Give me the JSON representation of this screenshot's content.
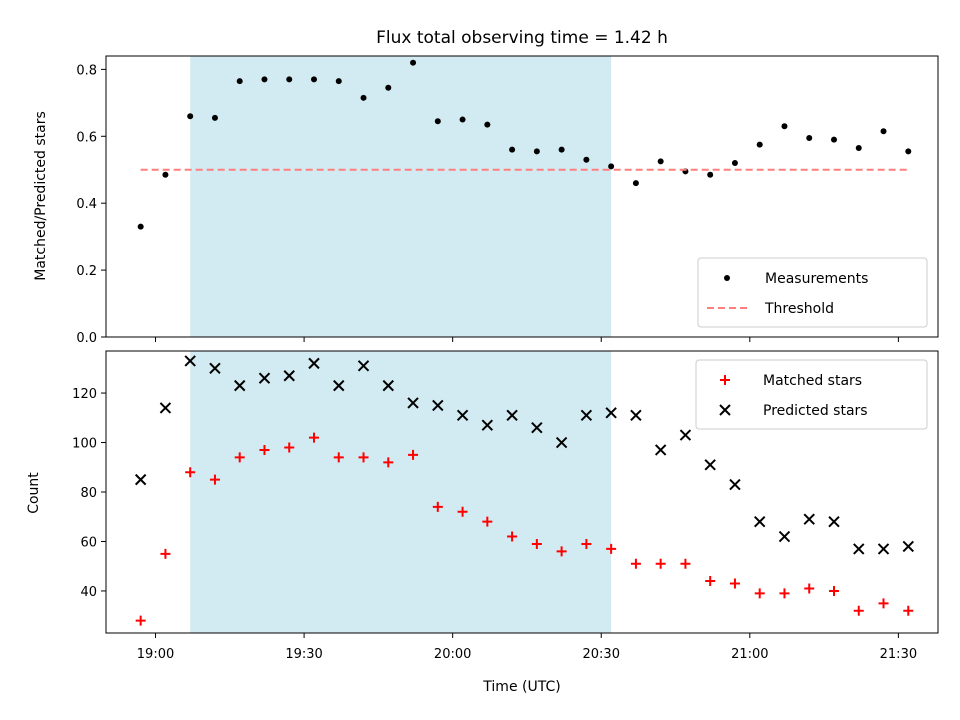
{
  "colors": {
    "measurement": "#000000",
    "threshold": "#ff7f7f",
    "matched": "#ff0000",
    "predicted": "#000000",
    "shaded_region": "#add8e6"
  },
  "chart_data": [
    {
      "type": "scatter",
      "title": "Flux total observing time = 1.42 h",
      "xlabel": "",
      "ylabel": "Matched/Predicted stars",
      "ylim": [
        0,
        0.84
      ],
      "yticks": [
        0.0,
        0.2,
        0.4,
        0.6,
        0.8
      ],
      "ytick_labels": [
        "0.0",
        "0.2",
        "0.4",
        "0.6",
        "0.8"
      ],
      "xlim": [
        "18:50",
        "21:38"
      ],
      "shaded_x_range": [
        "19:07",
        "20:32"
      ],
      "legend_placement": "bottom-right",
      "series": [
        {
          "name": "Measurements",
          "kind": "points",
          "x": [
            "18:57",
            "19:02",
            "19:07",
            "19:12",
            "19:17",
            "19:22",
            "19:27",
            "19:32",
            "19:37",
            "19:42",
            "19:47",
            "19:52",
            "19:57",
            "20:02",
            "20:07",
            "20:12",
            "20:17",
            "20:22",
            "20:27",
            "20:32",
            "20:37",
            "20:42",
            "20:47",
            "20:52",
            "20:57",
            "21:02",
            "21:07",
            "21:12",
            "21:17",
            "21:22",
            "21:27",
            "21:32"
          ],
          "y": [
            0.33,
            0.485,
            0.66,
            0.655,
            0.765,
            0.77,
            0.77,
            0.77,
            0.765,
            0.715,
            0.745,
            0.82,
            0.645,
            0.65,
            0.635,
            0.56,
            0.555,
            0.56,
            0.53,
            0.51,
            0.46,
            0.525,
            0.495,
            0.485,
            0.52,
            0.575,
            0.63,
            0.595,
            0.59,
            0.565,
            0.615,
            0.555
          ]
        },
        {
          "name": "Threshold",
          "kind": "dashed-line",
          "x": [
            "18:57",
            "21:32"
          ],
          "y": [
            0.5,
            0.5
          ]
        }
      ]
    },
    {
      "type": "scatter",
      "title": "",
      "xlabel": "Time (UTC)",
      "ylabel": "Count",
      "ylim": [
        23,
        137
      ],
      "yticks": [
        40,
        60,
        80,
        100,
        120
      ],
      "ytick_labels": [
        "40",
        "60",
        "80",
        "100",
        "120"
      ],
      "xlim": [
        "18:50",
        "21:38"
      ],
      "xticks": [
        "19:00",
        "19:30",
        "20:00",
        "20:30",
        "21:00",
        "21:30"
      ],
      "shaded_x_range": [
        "19:07",
        "20:32"
      ],
      "legend_placement": "top-right",
      "series": [
        {
          "name": "Matched stars",
          "kind": "plus",
          "x": [
            "18:57",
            "19:02",
            "19:07",
            "19:12",
            "19:17",
            "19:22",
            "19:27",
            "19:32",
            "19:37",
            "19:42",
            "19:47",
            "19:52",
            "19:57",
            "20:02",
            "20:07",
            "20:12",
            "20:17",
            "20:22",
            "20:27",
            "20:32",
            "20:37",
            "20:42",
            "20:47",
            "20:52",
            "20:57",
            "21:02",
            "21:07",
            "21:12",
            "21:17",
            "21:22",
            "21:27",
            "21:32"
          ],
          "y": [
            28,
            55,
            88,
            85,
            94,
            97,
            98,
            102,
            94,
            94,
            92,
            95,
            74,
            72,
            68,
            62,
            59,
            56,
            59,
            57,
            51,
            51,
            51,
            44,
            43,
            39,
            39,
            41,
            40,
            32,
            35,
            32
          ]
        },
        {
          "name": "Predicted stars",
          "kind": "cross",
          "x": [
            "18:57",
            "19:02",
            "19:07",
            "19:12",
            "19:17",
            "19:22",
            "19:27",
            "19:32",
            "19:37",
            "19:42",
            "19:47",
            "19:52",
            "19:57",
            "20:02",
            "20:07",
            "20:12",
            "20:17",
            "20:22",
            "20:27",
            "20:32",
            "20:37",
            "20:42",
            "20:47",
            "20:52",
            "20:57",
            "21:02",
            "21:07",
            "21:12",
            "21:17",
            "21:22",
            "21:27",
            "21:32"
          ],
          "y": [
            85,
            114,
            133,
            130,
            123,
            126,
            127,
            132,
            123,
            131,
            123,
            116,
            115,
            111,
            107,
            111,
            106,
            100,
            111,
            112,
            111,
            97,
            103,
            91,
            83,
            68,
            62,
            69,
            68,
            57,
            57,
            58
          ]
        }
      ]
    }
  ]
}
